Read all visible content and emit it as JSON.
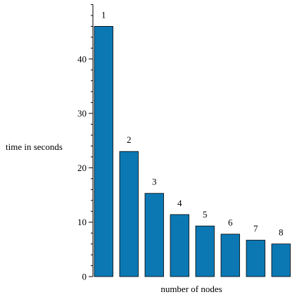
{
  "chart_data": {
    "type": "bar",
    "categories": [
      "1",
      "2",
      "3",
      "4",
      "5",
      "6",
      "7",
      "8"
    ],
    "values": [
      46,
      23,
      15.3,
      11.4,
      9.3,
      7.8,
      6.7,
      6.0
    ],
    "data_labels": [
      "1",
      "2",
      "3",
      "4",
      "5",
      "6",
      "7",
      "8"
    ],
    "title": "",
    "xlabel": "number of nodes",
    "ylabel": "time in seconds",
    "ylim": [
      0,
      50
    ],
    "yticks": [
      0,
      10,
      20,
      30,
      40
    ],
    "ytick_labels": [
      "0",
      "10",
      "20",
      "30",
      "40"
    ],
    "minor_tick_step": 2,
    "grid": false,
    "legend": "none",
    "bar_color": "#0b78b4",
    "bar_edge_color": "#000000"
  }
}
